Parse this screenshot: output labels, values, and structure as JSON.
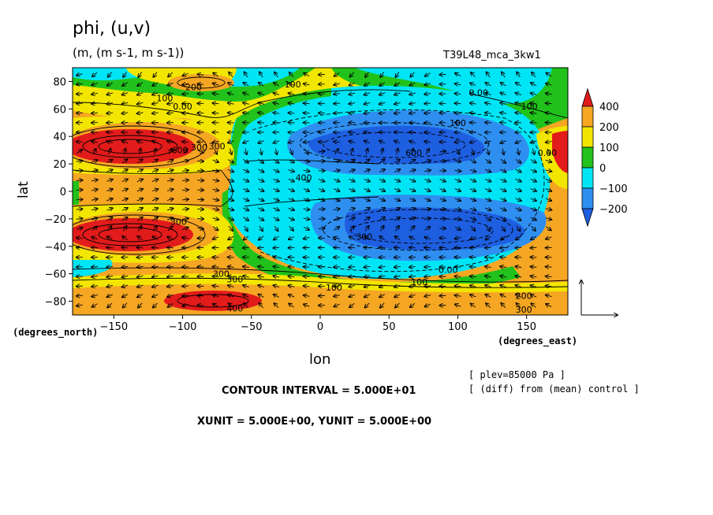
{
  "title": "phi, (u,v)",
  "subtitle": "(m, (m s-1, m s-1))",
  "run_label": "T39L48_mca_3kw1",
  "info": {
    "contour_interval": "CONTOUR INTERVAL = 5.000E+01",
    "vector_units": "XUNIT = 5.000E+00, YUNIT = 5.000E+00",
    "level": "[ plev=85000 Pa ]",
    "diff": "[ (diff) from (mean) control ]"
  },
  "chart_data": {
    "type": "heatmap",
    "title": "phi, (u,v)",
    "xlabel": "lon",
    "ylabel": "lat",
    "x_unit_label": "(degrees_east)",
    "y_unit_label": "(degrees_north)",
    "xlim": [
      -180,
      180
    ],
    "ylim": [
      -90,
      90
    ],
    "x_ticks": [
      -150,
      -100,
      -50,
      0,
      50,
      100,
      150
    ],
    "x_tick_labels": [
      "−150",
      "−100",
      "−50",
      "0",
      "50",
      "100",
      "150"
    ],
    "y_ticks": [
      80,
      60,
      40,
      20,
      0,
      -20,
      -40,
      -60,
      -80
    ],
    "y_tick_labels": [
      "80",
      "60",
      "40",
      "20",
      "0",
      "−20",
      "−40",
      "−60",
      "−80"
    ],
    "colorbar": {
      "labels": [
        "400",
        "200",
        "100",
        "0",
        "−100",
        "−200"
      ],
      "colors": [
        "#e8e8e8",
        "#e21b1b",
        "#f5a623",
        "#f2e600",
        "#21c21b",
        "#00e5f5",
        "#2f8ff0",
        "#1e5ee0"
      ]
    },
    "field_regions": [
      {
        "name": "nh-subtropical-high-pacific",
        "lon": -140,
        "lat": 33,
        "value": 400
      },
      {
        "name": "sh-subtropical-high-pacific",
        "lon": -140,
        "lat": -33,
        "value": 400
      },
      {
        "name": "south-polar-high",
        "lon": -95,
        "lat": -77,
        "value": 400
      },
      {
        "name": "north-high",
        "lon": -90,
        "lat": 75,
        "value": 200
      },
      {
        "name": "central-low",
        "lon": 40,
        "lat": 30,
        "value": -250
      },
      {
        "name": "south-central-low",
        "lon": 60,
        "lat": -30,
        "value": -250
      },
      {
        "name": "east-edge-high",
        "lon": 175,
        "lat": 25,
        "value": 400
      }
    ],
    "contour_labels": [
      {
        "text": "200",
        "lon": -92,
        "lat": 76
      },
      {
        "text": "100",
        "lon": -20,
        "lat": 78
      },
      {
        "text": "100",
        "lon": -113,
        "lat": 68
      },
      {
        "text": "0.00",
        "lon": -100,
        "lat": 62
      },
      {
        "text": "0.00",
        "lon": 115,
        "lat": 72
      },
      {
        "text": "100",
        "lon": 152,
        "lat": 62
      },
      {
        "text": "100",
        "lon": 100,
        "lat": 50
      },
      {
        "text": "300",
        "lon": -88,
        "lat": 32
      },
      {
        "text": "300",
        "lon": -75,
        "lat": 33
      },
      {
        "text": "300",
        "lon": -103,
        "lat": -22
      },
      {
        "text": "400",
        "lon": -12,
        "lat": 10
      },
      {
        "text": "300",
        "lon": 32,
        "lat": -33
      },
      {
        "text": "300",
        "lon": -72,
        "lat": -60
      },
      {
        "text": "300",
        "lon": -62,
        "lat": -64
      },
      {
        "text": "0.00",
        "lon": 93,
        "lat": -57
      },
      {
        "text": "0.00",
        "lon": 165,
        "lat": 28
      },
      {
        "text": "100",
        "lon": 72,
        "lat": -66
      },
      {
        "text": "100",
        "lon": 10,
        "lat": -70
      },
      {
        "text": "200",
        "lon": 148,
        "lat": -76
      },
      {
        "text": "300",
        "lon": 148,
        "lat": -86
      },
      {
        "text": "400",
        "lon": -62,
        "lat": -85
      },
      {
        "text": "600",
        "lon": -102,
        "lat": 30
      },
      {
        "text": "600",
        "lon": 68,
        "lat": 28
      }
    ]
  }
}
